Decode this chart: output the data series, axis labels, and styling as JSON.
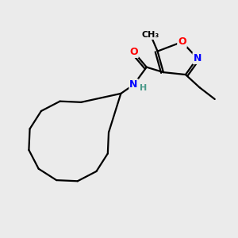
{
  "bg_color": "#ebebeb",
  "bond_color": "#000000",
  "bond_width": 1.6,
  "atom_colors": {
    "O": "#ff0000",
    "N": "#0000ff",
    "C": "#000000",
    "H": "#4a9a8a"
  },
  "font_size_atom": 9,
  "font_size_small": 8,
  "methyl_label": "CH₃"
}
